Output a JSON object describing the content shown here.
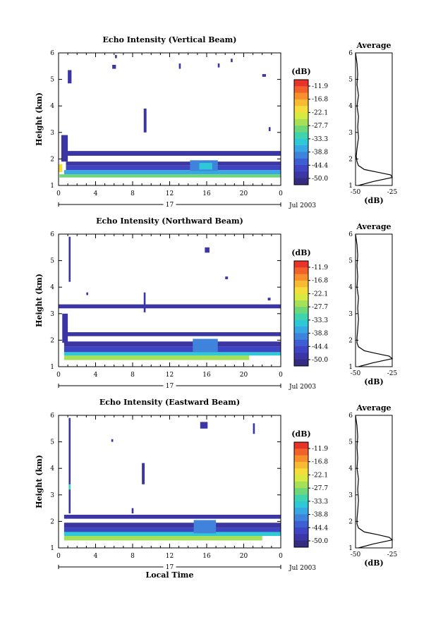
{
  "colorbar": {
    "title": "(dB)",
    "labels": [
      "-11.9",
      "-16.8",
      "-22.1",
      "-27.7",
      "-33.3",
      "-38.8",
      "-44.4",
      "-50.0"
    ],
    "colors": [
      "#e8332a",
      "#f2602c",
      "#f68f2c",
      "#f8b933",
      "#f5dd3b",
      "#d8ea41",
      "#a6df58",
      "#6fd77a",
      "#3fd4ad",
      "#2fc8d6",
      "#39a7e2",
      "#3f83dd",
      "#3d5fd3",
      "#3f45c2",
      "#3b36a4",
      "#332c80"
    ]
  },
  "x_axis": {
    "ticks": [
      "0",
      "4",
      "8",
      "12",
      "16",
      "20",
      "0"
    ],
    "day_label": "17",
    "date_label": "Jul 2003",
    "xlabel": "Local Time"
  },
  "y_axis": {
    "ylabel": "Height (km)",
    "ticks": [
      "1",
      "2",
      "3",
      "4",
      "5",
      "6"
    ]
  },
  "avg_axis": {
    "title": "Average",
    "xticks": [
      "-50",
      "-25"
    ],
    "xlabel": "(dB)"
  },
  "chart_data": [
    {
      "type": "heatmap",
      "title": "Echo Intensity (Vertical Beam)",
      "xlabel": "",
      "ylabel": "Height (km)",
      "xlim": [
        0,
        24
      ],
      "ylim": [
        1,
        6
      ],
      "clim": [
        -50.0,
        -11.9
      ],
      "bands": [
        {
          "x0": 0.1,
          "x1": 24,
          "y0": 1.3,
          "y1": 1.42,
          "value": -30
        },
        {
          "x0": 0.6,
          "x1": 24,
          "y0": 1.42,
          "y1": 1.58,
          "value": -38
        },
        {
          "x0": 0.8,
          "x1": 24,
          "y0": 1.58,
          "y1": 1.75,
          "value": -44
        },
        {
          "x0": 0.8,
          "x1": 24,
          "y0": 1.75,
          "y1": 1.9,
          "value": -47
        },
        {
          "x0": 0.8,
          "x1": 24,
          "y0": 2.12,
          "y1": 2.3,
          "value": -47
        },
        {
          "x0": 0.3,
          "x1": 1.0,
          "y0": 1.9,
          "y1": 2.9,
          "value": -47
        },
        {
          "x0": 0.0,
          "x1": 0.4,
          "y0": 1.5,
          "y1": 1.8,
          "value": -22
        },
        {
          "x0": 14.2,
          "x1": 17.2,
          "y0": 1.55,
          "y1": 1.95,
          "value": -40
        },
        {
          "x0": 15.2,
          "x1": 16.6,
          "y0": 1.6,
          "y1": 1.85,
          "value": -34
        },
        {
          "x0": 1.0,
          "x1": 1.4,
          "y0": 4.85,
          "y1": 5.35,
          "value": -47
        },
        {
          "x0": 9.2,
          "x1": 9.5,
          "y0": 3.0,
          "y1": 3.9,
          "value": -47
        },
        {
          "x0": 5.8,
          "x1": 6.2,
          "y0": 5.4,
          "y1": 5.55,
          "value": -47
        },
        {
          "x0": 6.1,
          "x1": 6.3,
          "y0": 5.8,
          "y1": 5.92,
          "value": -47
        },
        {
          "x0": 13.0,
          "x1": 13.2,
          "y0": 5.4,
          "y1": 5.6,
          "value": -47
        },
        {
          "x0": 17.2,
          "x1": 17.4,
          "y0": 5.45,
          "y1": 5.6,
          "value": -47
        },
        {
          "x0": 18.6,
          "x1": 18.8,
          "y0": 5.65,
          "y1": 5.78,
          "value": -47
        },
        {
          "x0": 22.0,
          "x1": 22.4,
          "y0": 5.1,
          "y1": 5.2,
          "value": -47
        },
        {
          "x0": 22.7,
          "x1": 22.9,
          "y0": 3.05,
          "y1": 3.2,
          "value": -47
        }
      ],
      "average": {
        "heights": [
          1.0,
          1.15,
          1.3,
          1.4,
          1.5,
          1.6,
          1.75,
          1.9,
          2.1,
          2.4,
          2.8,
          3.2,
          3.6,
          4.0,
          4.4,
          4.8,
          5.2,
          5.6,
          6.0
        ],
        "values": [
          -48,
          -38,
          -24,
          -26,
          -35,
          -44,
          -48,
          -49,
          -49.5,
          -49,
          -48,
          -48.5,
          -48,
          -49,
          -48,
          -49,
          -48.5,
          -49,
          -50
        ]
      }
    },
    {
      "type": "heatmap",
      "title": "Echo Intensity (Northward Beam)",
      "xlabel": "",
      "ylabel": "Height (km)",
      "xlim": [
        0,
        24
      ],
      "ylim": [
        1,
        6
      ],
      "clim": [
        -50.0,
        -11.9
      ],
      "bands": [
        {
          "x0": 0.6,
          "x1": 20.6,
          "y0": 1.25,
          "y1": 1.42,
          "value": -27
        },
        {
          "x0": 0.6,
          "x1": 24,
          "y0": 1.42,
          "y1": 1.55,
          "value": -34
        },
        {
          "x0": 0.6,
          "x1": 24,
          "y0": 1.55,
          "y1": 1.75,
          "value": -44
        },
        {
          "x0": 0.6,
          "x1": 24,
          "y0": 1.75,
          "y1": 1.95,
          "value": -47
        },
        {
          "x0": 0.6,
          "x1": 24,
          "y0": 2.15,
          "y1": 2.3,
          "value": -47
        },
        {
          "x0": 0.0,
          "x1": 24,
          "y0": 3.2,
          "y1": 3.35,
          "value": -47
        },
        {
          "x0": 0.4,
          "x1": 1.0,
          "y0": 1.9,
          "y1": 3.0,
          "value": -47
        },
        {
          "x0": 14.5,
          "x1": 17.2,
          "y0": 1.55,
          "y1": 2.05,
          "value": -40
        },
        {
          "x0": 1.1,
          "x1": 1.3,
          "y0": 4.2,
          "y1": 5.9,
          "value": -47
        },
        {
          "x0": 9.2,
          "x1": 9.4,
          "y0": 3.05,
          "y1": 3.8,
          "value": -47
        },
        {
          "x0": 15.8,
          "x1": 16.3,
          "y0": 5.3,
          "y1": 5.5,
          "value": -47
        },
        {
          "x0": 18.0,
          "x1": 18.3,
          "y0": 4.3,
          "y1": 4.4,
          "value": -47
        },
        {
          "x0": 22.6,
          "x1": 22.9,
          "y0": 3.5,
          "y1": 3.6,
          "value": -47
        },
        {
          "x0": 3.0,
          "x1": 3.2,
          "y0": 3.7,
          "y1": 3.8,
          "value": -47
        }
      ],
      "average": {
        "heights": [
          1.0,
          1.15,
          1.3,
          1.4,
          1.5,
          1.6,
          1.75,
          1.9,
          2.1,
          2.4,
          2.8,
          3.2,
          3.6,
          4.0,
          4.4,
          4.8,
          5.2,
          5.6,
          6.0
        ],
        "values": [
          -48,
          -38,
          -25,
          -27,
          -36,
          -44,
          -48,
          -49,
          -49,
          -48.5,
          -48,
          -48.5,
          -48,
          -49,
          -48.5,
          -49,
          -48.5,
          -49,
          -50
        ]
      }
    },
    {
      "type": "heatmap",
      "title": "Echo Intensity (Eastward Beam)",
      "xlabel": "Local Time",
      "ylabel": "Height (km)",
      "xlim": [
        0,
        24
      ],
      "ylim": [
        1,
        6
      ],
      "clim": [
        -50.0,
        -11.9
      ],
      "bands": [
        {
          "x0": 0.6,
          "x1": 22.0,
          "y0": 1.28,
          "y1": 1.45,
          "value": -27
        },
        {
          "x0": 0.6,
          "x1": 24,
          "y0": 1.45,
          "y1": 1.6,
          "value": -35
        },
        {
          "x0": 0.6,
          "x1": 24,
          "y0": 1.6,
          "y1": 1.75,
          "value": -44
        },
        {
          "x0": 0.6,
          "x1": 24,
          "y0": 1.75,
          "y1": 1.95,
          "value": -47
        },
        {
          "x0": 0.6,
          "x1": 24,
          "y0": 2.1,
          "y1": 2.25,
          "value": -47
        },
        {
          "x0": 14.6,
          "x1": 17.0,
          "y0": 1.55,
          "y1": 2.05,
          "value": -40
        },
        {
          "x0": 1.1,
          "x1": 1.3,
          "y0": 2.3,
          "y1": 5.9,
          "value": -47
        },
        {
          "x0": 1.1,
          "x1": 1.3,
          "y0": 3.2,
          "y1": 3.4,
          "value": -33
        },
        {
          "x0": 9.0,
          "x1": 9.3,
          "y0": 3.4,
          "y1": 4.2,
          "value": -47
        },
        {
          "x0": 7.9,
          "x1": 8.1,
          "y0": 2.3,
          "y1": 2.5,
          "value": -47
        },
        {
          "x0": 15.3,
          "x1": 16.1,
          "y0": 5.5,
          "y1": 5.75,
          "value": -47
        },
        {
          "x0": 21.0,
          "x1": 21.2,
          "y0": 5.3,
          "y1": 5.7,
          "value": -47
        },
        {
          "x0": 5.7,
          "x1": 5.9,
          "y0": 5.0,
          "y1": 5.1,
          "value": -47
        }
      ],
      "average": {
        "heights": [
          1.0,
          1.15,
          1.3,
          1.4,
          1.5,
          1.6,
          1.75,
          1.9,
          2.1,
          2.4,
          2.8,
          3.2,
          3.6,
          4.0,
          4.4,
          4.8,
          5.2,
          5.6,
          6.0
        ],
        "values": [
          -48,
          -38,
          -25,
          -27,
          -35,
          -44,
          -48,
          -49,
          -49,
          -48.5,
          -48,
          -48.5,
          -48,
          -49,
          -48.5,
          -49,
          -48.5,
          -49,
          -50
        ]
      }
    }
  ]
}
